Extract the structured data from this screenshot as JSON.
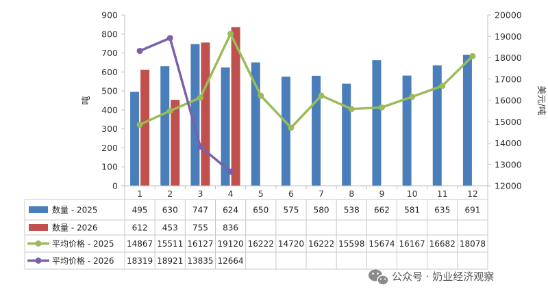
{
  "chart_data": {
    "type": "bar+line",
    "categories": [
      "1",
      "2",
      "3",
      "4",
      "5",
      "6",
      "7",
      "8",
      "9",
      "10",
      "11",
      "12"
    ],
    "left_axis": {
      "label": "吨",
      "range": [
        0,
        900
      ],
      "ticks": [
        "0",
        "100",
        "200",
        "300",
        "400",
        "500",
        "600",
        "700",
        "800",
        "900"
      ]
    },
    "right_axis": {
      "label": "美元/吨",
      "range": [
        12000,
        20000
      ],
      "ticks": [
        "12000",
        "13000",
        "14000",
        "15000",
        "16000",
        "17000",
        "18000",
        "19000",
        "20000"
      ]
    },
    "grid": false,
    "series": [
      {
        "name": "数量 - 2025",
        "kind": "bar",
        "axis": "left",
        "color": "#4a7ebb",
        "values": [
          495,
          630,
          747,
          624,
          650,
          575,
          580,
          538,
          662,
          581,
          635,
          691
        ],
        "labels": [
          "495",
          "630",
          "747",
          "624",
          "650",
          "575",
          "580",
          "538",
          "662",
          "581",
          "635",
          "691"
        ]
      },
      {
        "name": "数量 - 2026",
        "kind": "bar",
        "axis": "left",
        "color": "#c0504d",
        "values": [
          612,
          453,
          755,
          836,
          null,
          null,
          null,
          null,
          null,
          null,
          null,
          null
        ],
        "labels": [
          "612",
          "453",
          "755",
          "836",
          "",
          "",
          "",
          "",
          "",
          "",
          "",
          ""
        ]
      },
      {
        "name": "平均价格 - 2025",
        "kind": "line",
        "axis": "right",
        "color": "#9bbb59",
        "values": [
          14867,
          15511,
          16127,
          19120,
          16222,
          14720,
          16222,
          15598,
          15674,
          16167,
          16682,
          18078
        ],
        "labels": [
          "14867",
          "15511",
          "16127",
          "19120",
          "16222",
          "14720",
          "16222",
          "15598",
          "15674",
          "16167",
          "16682",
          "18078"
        ]
      },
      {
        "name": "平均价格 - 2026",
        "kind": "line",
        "axis": "right",
        "color": "#7b5fa8",
        "values": [
          18319,
          18921,
          13835,
          12664,
          null,
          null,
          null,
          null,
          null,
          null,
          null,
          null
        ],
        "labels": [
          "18319",
          "18921",
          "13835",
          "12664",
          "",
          "",
          "",
          "",
          "",
          "",
          "",
          ""
        ]
      }
    ]
  },
  "watermark": {
    "text": "公众号 · 奶业经济观察",
    "icon": "wechat-icon"
  }
}
